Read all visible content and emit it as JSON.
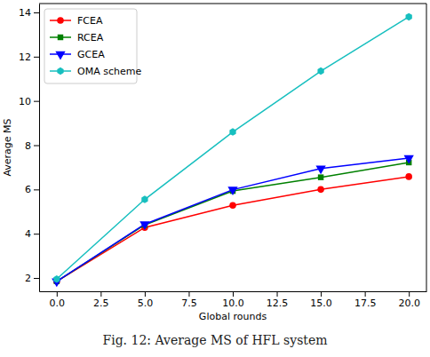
{
  "chart_data": {
    "type": "line",
    "caption": "Fig. 12: Average MS of HFL system",
    "x_label": "Global rounds",
    "y_label": "Average MS",
    "x": [
      0,
      5,
      10,
      15,
      20
    ],
    "series": [
      {
        "name": "FCEA",
        "color": "#ff0000",
        "marker": "circle",
        "values": [
          1.85,
          4.28,
          5.28,
          6.0,
          6.58
        ]
      },
      {
        "name": "RCEA",
        "color": "#008000",
        "marker": "square",
        "values": [
          1.85,
          4.4,
          5.93,
          6.55,
          7.22
        ]
      },
      {
        "name": "GCEA",
        "color": "#0000ff",
        "marker": "triangle_down",
        "values": [
          1.85,
          4.43,
          5.99,
          6.95,
          7.42
        ]
      },
      {
        "name": "OMA scheme",
        "color": "#17bfbf",
        "marker": "hexagon",
        "values": [
          1.95,
          5.55,
          8.6,
          11.35,
          13.8
        ]
      }
    ],
    "xlim": [
      -1,
      21
    ],
    "ylim": [
      1.4,
      14.4
    ],
    "xticks": [
      {
        "value": 0,
        "label": "0.0"
      },
      {
        "value": 2.5,
        "label": "2.5"
      },
      {
        "value": 5,
        "label": "5.0"
      },
      {
        "value": 7.5,
        "label": "7.5"
      },
      {
        "value": 10,
        "label": "10.0"
      },
      {
        "value": 12.5,
        "label": "12.5"
      },
      {
        "value": 15,
        "label": "15.0"
      },
      {
        "value": 17.5,
        "label": "17.5"
      },
      {
        "value": 20,
        "label": "20.0"
      }
    ],
    "yticks": [
      2,
      4,
      6,
      8,
      10,
      12,
      14
    ],
    "legend": "upper left",
    "grid": false
  }
}
